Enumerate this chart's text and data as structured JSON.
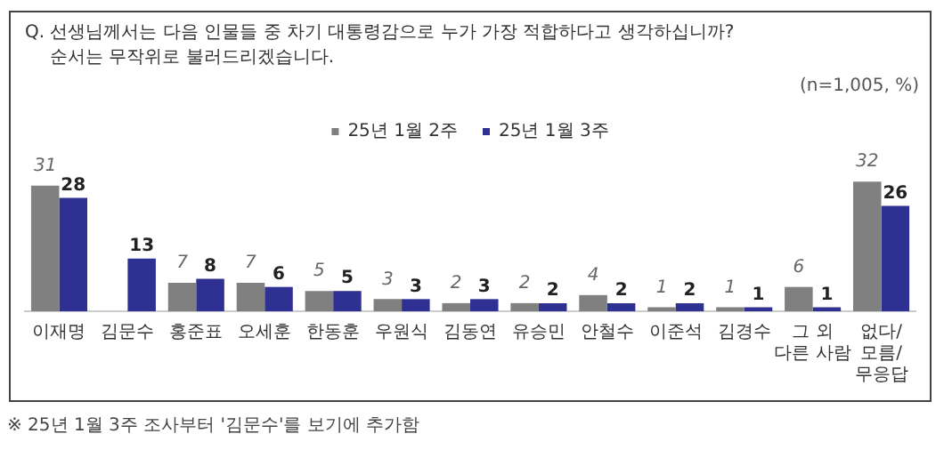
{
  "chart_data": {
    "type": "bar",
    "title": "Q. 선생님께서는 다음 인물들 중 차기 대통령감으로 누가 가장 적합하다고 생각하십니까?",
    "subtitle": "순서는 무작위로 불러드리겠습니다.",
    "categories": [
      "이재명",
      "김문수",
      "홍준표",
      "오세훈",
      "한동훈",
      "우원식",
      "김동연",
      "유승민",
      "안철수",
      "이준석",
      "김경수",
      "그 외\n다른 사람",
      "없다/\n모름/\n무응답"
    ],
    "series": [
      {
        "name": "25년 1월 2주",
        "color": "#808080",
        "values": [
          31,
          null,
          7,
          7,
          5,
          3,
          2,
          2,
          4,
          1,
          1,
          6,
          32
        ]
      },
      {
        "name": "25년 1월 3주",
        "color": "#2e3192",
        "values": [
          28,
          13,
          8,
          6,
          5,
          3,
          3,
          2,
          2,
          2,
          1,
          1,
          26
        ]
      }
    ],
    "data_labels": true,
    "legend": "top",
    "grid": false,
    "annotations": [
      "(n=1,005, %)",
      "※ 25년 1월 3주 조사부터 '김문수'를 보기에 추가함"
    ]
  }
}
